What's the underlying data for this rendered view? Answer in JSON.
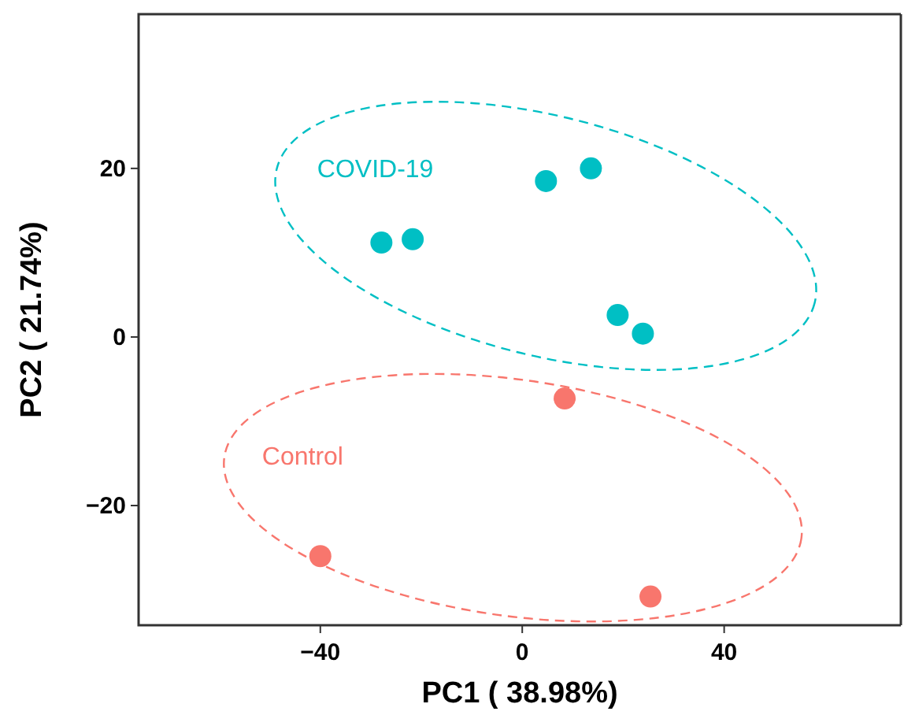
{
  "chart_data": {
    "type": "scatter",
    "xlabel": "PC1 ( 38.98%)",
    "ylabel": "PC2 ( 21.74%)",
    "xlim": [
      -76,
      75
    ],
    "ylim": [
      -34.2,
      38.3
    ],
    "xticks": [
      -40,
      0,
      40
    ],
    "yticks": [
      -20,
      0,
      20
    ],
    "grid": false,
    "legend": false,
    "marker": "circle",
    "series": [
      {
        "name": "COVID-19",
        "color": "#00bfc4",
        "x": [
          -27.9,
          -21.7,
          4.7,
          13.6,
          18.9,
          23.9
        ],
        "values": [
          11.2,
          11.6,
          18.5,
          20,
          2.6,
          0.4
        ]
      },
      {
        "name": "Control",
        "color": "#f8766d",
        "x": [
          8.4,
          -40,
          25.4
        ],
        "values": [
          -7.3,
          -26,
          -30.8
        ]
      }
    ]
  }
}
